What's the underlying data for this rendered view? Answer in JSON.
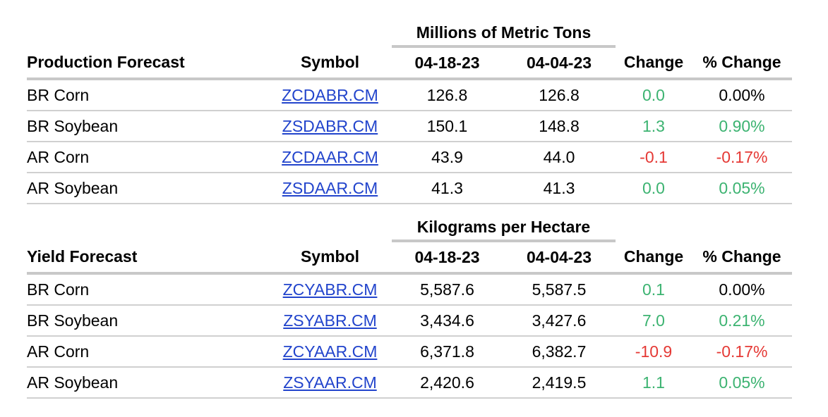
{
  "colors": {
    "positive": "#3cb371",
    "negative": "#e53935",
    "link": "#2244cc"
  },
  "tables": [
    {
      "group_header": "Millions of Metric Tons",
      "headers": [
        "Production Forecast",
        "Symbol",
        "04-18-23",
        "04-04-23",
        "Change",
        "% Change"
      ],
      "rows": [
        {
          "name": "BR Corn",
          "symbol": "ZCDABR.CM",
          "d1": "126.8",
          "d2": "126.8",
          "change": "0.0",
          "pct": "0.00%",
          "cs": "pos",
          "ps": ""
        },
        {
          "name": "BR Soybean",
          "symbol": "ZSDABR.CM",
          "d1": "150.1",
          "d2": "148.8",
          "change": "1.3",
          "pct": "0.90%",
          "cs": "pos",
          "ps": "pos"
        },
        {
          "name": "AR Corn",
          "symbol": "ZCDAAR.CM",
          "d1": "43.9",
          "d2": "44.0",
          "change": "-0.1",
          "pct": "-0.17%",
          "cs": "neg",
          "ps": "neg"
        },
        {
          "name": "AR Soybean",
          "symbol": "ZSDAAR.CM",
          "d1": "41.3",
          "d2": "41.3",
          "change": "0.0",
          "pct": "0.05%",
          "cs": "pos",
          "ps": "pos"
        }
      ]
    },
    {
      "group_header": "Kilograms per Hectare",
      "headers": [
        "Yield Forecast",
        "Symbol",
        "04-18-23",
        "04-04-23",
        "Change",
        "% Change"
      ],
      "rows": [
        {
          "name": "BR Corn",
          "symbol": "ZCYABR.CM",
          "d1": "5,587.6",
          "d2": "5,587.5",
          "change": "0.1",
          "pct": "0.00%",
          "cs": "pos",
          "ps": ""
        },
        {
          "name": "BR Soybean",
          "symbol": "ZSYABR.CM",
          "d1": "3,434.6",
          "d2": "3,427.6",
          "change": "7.0",
          "pct": "0.21%",
          "cs": "pos",
          "ps": "pos"
        },
        {
          "name": "AR Corn",
          "symbol": "ZCYAAR.CM",
          "d1": "6,371.8",
          "d2": "6,382.7",
          "change": "-10.9",
          "pct": "-0.17%",
          "cs": "neg",
          "ps": "neg"
        },
        {
          "name": "AR Soybean",
          "symbol": "ZSYAAR.CM",
          "d1": "2,420.6",
          "d2": "2,419.5",
          "change": "1.1",
          "pct": "0.05%",
          "cs": "pos",
          "ps": "pos"
        }
      ]
    }
  ]
}
